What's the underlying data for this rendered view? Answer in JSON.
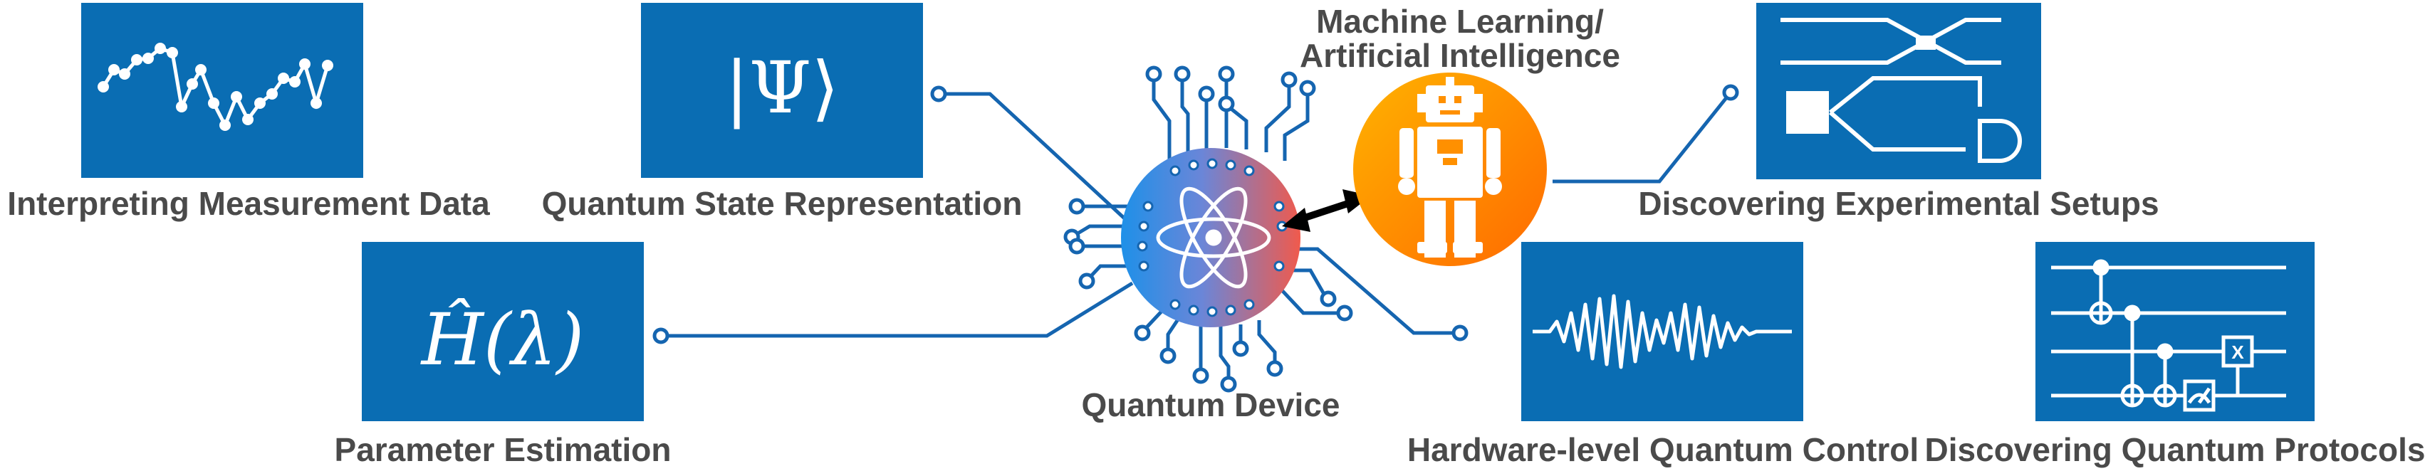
{
  "colors": {
    "panel_blue": "#0a6db3",
    "wire_blue": "#1565b0",
    "text_gray": "#4a4a4a",
    "robot_orange_start": "#ffb300",
    "robot_orange_end": "#ff6a00",
    "device_blue": "#1e90e8",
    "device_red": "#f05a4c"
  },
  "center": {
    "device_label": "Quantum Device",
    "robot_label_line1": "Machine Learning/",
    "robot_label_line2": "Artificial Intelligence"
  },
  "panels": {
    "measurement": {
      "label": "Interpreting Measurement Data",
      "icon": "noisy-data-plot-icon"
    },
    "state": {
      "label": "Quantum State Representation",
      "glyph": "|Ψ⟩"
    },
    "parameter": {
      "label": "Parameter Estimation",
      "glyph": "Ĥ(λ)"
    },
    "setups": {
      "label": "Discovering Experimental Setups",
      "icon": "optical-setup-icon"
    },
    "control": {
      "label": "Hardware-level Quantum Control",
      "icon": "pulse-waveform-icon"
    },
    "protocols": {
      "label": "Discovering Quantum Protocols",
      "icon": "quantum-circuit-icon",
      "gate_label": "X"
    }
  }
}
